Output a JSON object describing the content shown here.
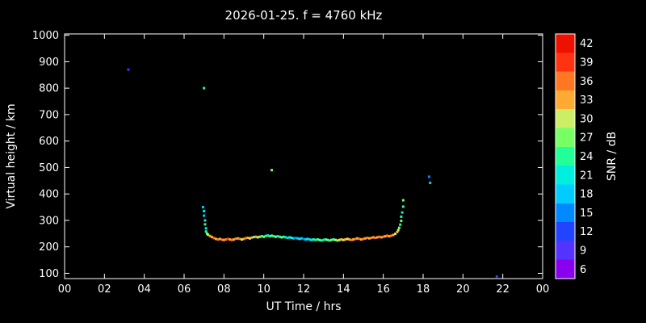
{
  "chart_data": {
    "type": "scatter",
    "title": "2026-01-25. f = 4760 kHz",
    "xlabel": "UT Time / hrs",
    "ylabel": "Virtual height / km",
    "grid": false,
    "background": "#000000",
    "text_color": "#ffffff",
    "xlim": [
      0,
      24
    ],
    "ylim": [
      80,
      1005
    ],
    "x_tick_values": [
      0,
      2,
      4,
      6,
      8,
      10,
      12,
      14,
      16,
      18,
      20,
      22,
      24
    ],
    "x_tick_labels": [
      "00",
      "02",
      "04",
      "06",
      "08",
      "10",
      "12",
      "14",
      "16",
      "18",
      "20",
      "22",
      "00"
    ],
    "y_tick_values": [
      100,
      200,
      300,
      400,
      500,
      600,
      700,
      800,
      900,
      1000
    ],
    "colorbar": {
      "label": "SNR / dB",
      "min": 4.5,
      "max": 43.5,
      "tick_values": [
        6,
        9,
        12,
        15,
        18,
        21,
        24,
        27,
        30,
        33,
        36,
        39,
        42
      ],
      "colors": [
        "#8800ee",
        "#5533ff",
        "#2244ff",
        "#0088ff",
        "#00ccff",
        "#00eedd",
        "#22ff99",
        "#77ff66",
        "#ccee66",
        "#ffaa33",
        "#ff7722",
        "#ff3311",
        "#ee1100"
      ]
    },
    "points_format": [
      "ut_time_hrs",
      "virtual_height_km",
      "snr_db"
    ],
    "points": [
      [
        3.2,
        870,
        12
      ],
      [
        7.0,
        800,
        24
      ],
      [
        10.4,
        490,
        27
      ],
      [
        18.3,
        465,
        15
      ],
      [
        18.35,
        442,
        18
      ],
      [
        21.7,
        88,
        12
      ],
      [
        6.95,
        350,
        18
      ],
      [
        7.0,
        335,
        21
      ],
      [
        7.0,
        318,
        18
      ],
      [
        7.05,
        300,
        21
      ],
      [
        7.05,
        285,
        24
      ],
      [
        7.1,
        270,
        21
      ],
      [
        7.1,
        258,
        24
      ],
      [
        7.15,
        250,
        27
      ],
      [
        7.2,
        246,
        30
      ],
      [
        7.3,
        241,
        33
      ],
      [
        7.4,
        237,
        33
      ],
      [
        7.5,
        233,
        36
      ],
      [
        7.6,
        230,
        33
      ],
      [
        7.7,
        228,
        36
      ],
      [
        7.8,
        230,
        33
      ],
      [
        7.9,
        227,
        36
      ],
      [
        8.0,
        226,
        33
      ],
      [
        8.1,
        228,
        36
      ],
      [
        8.2,
        230,
        39
      ],
      [
        8.3,
        228,
        33
      ],
      [
        8.4,
        226,
        36
      ],
      [
        8.5,
        228,
        33
      ],
      [
        8.6,
        231,
        36
      ],
      [
        8.7,
        232,
        33
      ],
      [
        8.8,
        230,
        36
      ],
      [
        8.9,
        228,
        30
      ],
      [
        9.0,
        230,
        33
      ],
      [
        9.1,
        233,
        36
      ],
      [
        9.2,
        234,
        33
      ],
      [
        9.3,
        232,
        30
      ],
      [
        9.4,
        235,
        33
      ],
      [
        9.5,
        237,
        27
      ],
      [
        9.6,
        238,
        33
      ],
      [
        9.7,
        236,
        30
      ],
      [
        9.8,
        238,
        27
      ],
      [
        9.9,
        240,
        24
      ],
      [
        10.0,
        238,
        27
      ],
      [
        10.1,
        241,
        24
      ],
      [
        10.2,
        243,
        21
      ],
      [
        10.3,
        240,
        24
      ],
      [
        10.4,
        242,
        27
      ],
      [
        10.5,
        240,
        24
      ],
      [
        10.6,
        238,
        27
      ],
      [
        10.7,
        240,
        21
      ],
      [
        10.8,
        238,
        24
      ],
      [
        10.9,
        236,
        27
      ],
      [
        11.0,
        238,
        24
      ],
      [
        11.1,
        236,
        21
      ],
      [
        11.2,
        234,
        18
      ],
      [
        11.3,
        236,
        21
      ],
      [
        11.4,
        234,
        24
      ],
      [
        11.5,
        232,
        18
      ],
      [
        11.6,
        234,
        15
      ],
      [
        11.7,
        232,
        18
      ],
      [
        11.8,
        230,
        21
      ],
      [
        11.9,
        232,
        18
      ],
      [
        12.0,
        230,
        15
      ],
      [
        12.1,
        228,
        18
      ],
      [
        12.2,
        230,
        21
      ],
      [
        12.3,
        228,
        18
      ],
      [
        12.4,
        226,
        21
      ],
      [
        12.5,
        228,
        24
      ],
      [
        12.6,
        226,
        21
      ],
      [
        12.7,
        228,
        24
      ],
      [
        12.8,
        226,
        27
      ],
      [
        12.9,
        224,
        24
      ],
      [
        13.0,
        226,
        21
      ],
      [
        13.1,
        228,
        24
      ],
      [
        13.2,
        226,
        27
      ],
      [
        13.3,
        224,
        24
      ],
      [
        13.4,
        226,
        27
      ],
      [
        13.5,
        228,
        24
      ],
      [
        13.6,
        226,
        30
      ],
      [
        13.7,
        224,
        27
      ],
      [
        13.8,
        226,
        30
      ],
      [
        13.9,
        228,
        33
      ],
      [
        14.0,
        226,
        30
      ],
      [
        14.1,
        228,
        33
      ],
      [
        14.2,
        230,
        30
      ],
      [
        14.3,
        228,
        33
      ],
      [
        14.4,
        226,
        36
      ],
      [
        14.5,
        228,
        33
      ],
      [
        14.6,
        230,
        36
      ],
      [
        14.7,
        232,
        33
      ],
      [
        14.8,
        230,
        36
      ],
      [
        14.9,
        228,
        33
      ],
      [
        15.0,
        230,
        36
      ],
      [
        15.1,
        232,
        33
      ],
      [
        15.2,
        234,
        36
      ],
      [
        15.3,
        232,
        33
      ],
      [
        15.4,
        234,
        36
      ],
      [
        15.5,
        236,
        33
      ],
      [
        15.6,
        234,
        36
      ],
      [
        15.7,
        236,
        33
      ],
      [
        15.8,
        238,
        36
      ],
      [
        15.9,
        236,
        33
      ],
      [
        16.0,
        238,
        36
      ],
      [
        16.1,
        240,
        33
      ],
      [
        16.2,
        242,
        36
      ],
      [
        16.3,
        240,
        33
      ],
      [
        16.4,
        242,
        36
      ],
      [
        16.5,
        245,
        33
      ],
      [
        16.6,
        249,
        30
      ],
      [
        16.7,
        256,
        33
      ],
      [
        16.75,
        263,
        30
      ],
      [
        16.8,
        272,
        27
      ],
      [
        16.85,
        284,
        24
      ],
      [
        16.9,
        298,
        27
      ],
      [
        16.9,
        314,
        24
      ],
      [
        16.95,
        330,
        21
      ],
      [
        17.0,
        352,
        24
      ],
      [
        17.0,
        376,
        27
      ]
    ]
  }
}
